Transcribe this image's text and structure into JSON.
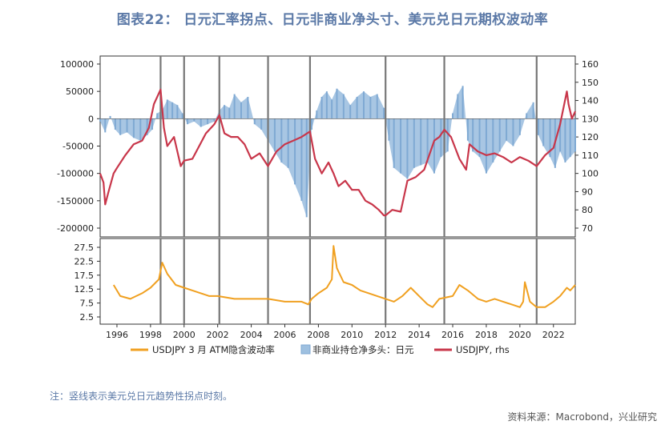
{
  "title": "图表22： 日元汇率拐点、日元非商业净头寸、美元兑日元期权波动率",
  "note": "注：竖线表示美元兑日元趋势性拐点时刻。",
  "source": "资料来源：Macrobond，兴业研究",
  "colors": {
    "rate": "#c8364a",
    "position": "#9ec0e0",
    "vol": "#f0a020",
    "turning": "#777777"
  },
  "chart_data": [
    {
      "type": "area",
      "panel": "top",
      "x_range": [
        1995.0,
        2023.3
      ],
      "x_ticks": [
        "1996",
        "1998",
        "2000",
        "2002",
        "2004",
        "2006",
        "2008",
        "2010",
        "2012",
        "2014",
        "2016",
        "2018",
        "2020",
        "2022"
      ],
      "y_left_ticks": [
        "100000",
        "50000",
        "0",
        "-50000",
        "-100000",
        "-150000",
        "-200000"
      ],
      "y_left_range": [
        -200000,
        100000
      ],
      "y_right_ticks": [
        "160",
        "150",
        "140",
        "130",
        "120",
        "110",
        "100",
        "90",
        "80",
        "70"
      ],
      "y_right_range": [
        70,
        160
      ],
      "turning_points": [
        1998.6,
        2000.0,
        2002.1,
        2005.0,
        2007.5,
        2012.0,
        2015.5,
        2021.0
      ],
      "series": [
        {
          "name": "非商业持仓净多头：日元",
          "type": "bar",
          "axis": "left",
          "x": [
            1995.0,
            1995.3,
            1995.6,
            1995.9,
            1996.2,
            1996.6,
            1997.0,
            1997.4,
            1997.8,
            1998.1,
            1998.4,
            1998.7,
            1999.0,
            1999.3,
            1999.6,
            1999.9,
            2000.2,
            2000.6,
            2001.0,
            2001.4,
            2001.8,
            2002.1,
            2002.4,
            2002.7,
            2003.0,
            2003.4,
            2003.8,
            2004.2,
            2004.6,
            2005.0,
            2005.4,
            2005.8,
            2006.2,
            2006.6,
            2007.0,
            2007.3,
            2007.6,
            2007.9,
            2008.2,
            2008.5,
            2008.8,
            2009.1,
            2009.5,
            2009.9,
            2010.3,
            2010.7,
            2011.1,
            2011.5,
            2011.9,
            2012.2,
            2012.5,
            2012.9,
            2013.3,
            2013.7,
            2014.1,
            2014.5,
            2014.9,
            2015.3,
            2015.7,
            2016.0,
            2016.3,
            2016.6,
            2016.9,
            2017.2,
            2017.6,
            2018.0,
            2018.4,
            2018.8,
            2019.2,
            2019.6,
            2020.0,
            2020.4,
            2020.8,
            2021.1,
            2021.4,
            2021.8,
            2022.1,
            2022.4,
            2022.7,
            2023.0,
            2023.3
          ],
          "values": [
            -5000,
            -25000,
            5000,
            -20000,
            -30000,
            -25000,
            -35000,
            -40000,
            -30000,
            -20000,
            10000,
            15000,
            35000,
            30000,
            25000,
            10000,
            -10000,
            -5000,
            -15000,
            -10000,
            -5000,
            15000,
            25000,
            20000,
            45000,
            30000,
            40000,
            -10000,
            -20000,
            -40000,
            -60000,
            -80000,
            -90000,
            -120000,
            -150000,
            -180000,
            -20000,
            15000,
            40000,
            50000,
            35000,
            55000,
            45000,
            25000,
            40000,
            50000,
            40000,
            45000,
            20000,
            -40000,
            -90000,
            -100000,
            -110000,
            -90000,
            -85000,
            -80000,
            -100000,
            -70000,
            -60000,
            10000,
            45000,
            60000,
            -40000,
            -60000,
            -70000,
            -100000,
            -80000,
            -60000,
            -40000,
            -50000,
            -30000,
            10000,
            30000,
            -30000,
            -50000,
            -70000,
            -90000,
            -60000,
            -80000,
            -70000,
            -60000
          ]
        },
        {
          "name": "USDJPY, rhs",
          "type": "line",
          "axis": "right",
          "x": [
            1995.0,
            1995.2,
            1995.3,
            1995.5,
            1995.8,
            1996.0,
            1996.5,
            1997.0,
            1997.5,
            1997.9,
            1998.2,
            1998.6,
            1998.8,
            1999.0,
            1999.4,
            1999.8,
            2000.0,
            2000.5,
            2000.9,
            2001.3,
            2001.8,
            2002.1,
            2002.4,
            2002.8,
            2003.2,
            2003.6,
            2004.0,
            2004.5,
            2005.0,
            2005.5,
            2006.0,
            2006.5,
            2007.0,
            2007.5,
            2007.8,
            2008.2,
            2008.6,
            2008.9,
            2009.2,
            2009.6,
            2010.0,
            2010.4,
            2010.8,
            2011.2,
            2011.6,
            2011.9,
            2012.0,
            2012.4,
            2012.9,
            2013.3,
            2013.8,
            2014.3,
            2014.9,
            2015.2,
            2015.5,
            2015.9,
            2016.4,
            2016.8,
            2017.0,
            2017.5,
            2018.0,
            2018.5,
            2019.0,
            2019.5,
            2020.0,
            2020.5,
            2021.0,
            2021.5,
            2022.0,
            2022.4,
            2022.8,
            2022.9,
            2023.1,
            2023.3
          ],
          "values": [
            100,
            95,
            83,
            90,
            100,
            103,
            110,
            116,
            118,
            125,
            138,
            146,
            125,
            115,
            120,
            104,
            107,
            108,
            115,
            122,
            127,
            132,
            122,
            120,
            120,
            116,
            108,
            111,
            104,
            112,
            116,
            118,
            120,
            123,
            108,
            100,
            106,
            100,
            93,
            96,
            91,
            91,
            85,
            83,
            80,
            77,
            77,
            80,
            79,
            96,
            98,
            102,
            118,
            120,
            124,
            120,
            108,
            102,
            116,
            112,
            110,
            111,
            109,
            106,
            109,
            107,
            104,
            110,
            114,
            127,
            145,
            138,
            130,
            134
          ]
        }
      ]
    },
    {
      "type": "line",
      "panel": "bottom",
      "x_range": [
        1995.0,
        2023.3
      ],
      "y_ticks": [
        "27.5",
        "22.5",
        "17.5",
        "12.5",
        "7.5",
        "2.5"
      ],
      "y_range": [
        2.5,
        27.5
      ],
      "series": [
        {
          "name": "USDJPY 3 月 ATM隐含波动率",
          "x": [
            1995.8,
            1996.2,
            1996.8,
            1997.5,
            1998.0,
            1998.5,
            1998.7,
            1999.0,
            1999.5,
            2000.0,
            2000.5,
            2001.0,
            2001.5,
            2002.0,
            2003.0,
            2004.0,
            2005.0,
            2006.0,
            2007.0,
            2007.4,
            2007.6,
            2008.0,
            2008.5,
            2008.8,
            2008.9,
            2009.1,
            2009.5,
            2010.0,
            2010.5,
            2011.0,
            2011.5,
            2012.0,
            2012.5,
            2013.0,
            2013.5,
            2014.0,
            2014.5,
            2014.8,
            2015.2,
            2016.0,
            2016.4,
            2016.9,
            2017.5,
            2018.0,
            2018.5,
            2019.0,
            2019.5,
            2020.0,
            2020.2,
            2020.3,
            2020.6,
            2021.0,
            2021.5,
            2022.0,
            2022.4,
            2022.8,
            2023.0,
            2023.3
          ],
          "values": [
            14,
            10,
            9,
            11,
            13,
            16,
            22,
            18,
            14,
            13,
            12,
            11,
            10,
            10,
            9,
            9,
            9,
            8,
            8,
            7,
            9,
            11,
            13,
            16,
            28,
            20,
            15,
            14,
            12,
            11,
            10,
            9,
            8,
            10,
            13,
            10,
            7,
            6,
            9,
            10,
            14,
            12,
            9,
            8,
            9,
            8,
            7,
            6,
            8,
            15,
            8,
            6,
            6,
            8,
            10,
            13,
            12,
            14
          ]
        }
      ]
    }
  ],
  "legend": [
    {
      "label": "USDJPY 3 月 ATM隐含波动率",
      "kind": "line",
      "color": "#f0a020"
    },
    {
      "label": "非商业持仓净多头：日元",
      "kind": "box",
      "color": "#9ec0e0"
    },
    {
      "label": "USDJPY, rhs",
      "kind": "line",
      "color": "#c8364a"
    }
  ]
}
